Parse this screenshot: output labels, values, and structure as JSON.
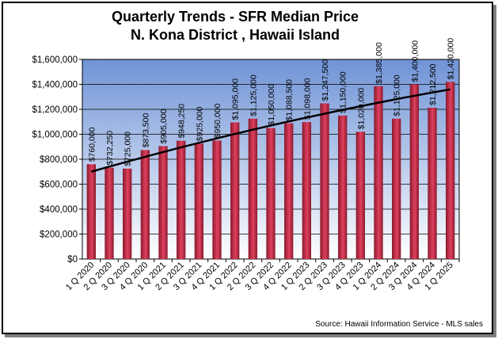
{
  "chart_data": {
    "type": "bar",
    "title": "Quarterly Trends - SFR Median Price",
    "subtitle": "N. Kona District , Hawaii Island",
    "xlabel": "",
    "ylabel": "",
    "ylim": [
      0,
      1600000
    ],
    "yticks": [
      0,
      200000,
      400000,
      600000,
      800000,
      1000000,
      1200000,
      1400000,
      1600000
    ],
    "ytick_labels": [
      "$0",
      "$200,000",
      "$400,000",
      "$600,000",
      "$800,000",
      "$1,000,000",
      "$1,200,000",
      "$1,400,000",
      "$1,600,000"
    ],
    "categories": [
      "1 Q 2020",
      "2 Q 2020",
      "3 Q 2020",
      "4 Q 2020",
      "1 Q 2021",
      "2 Q 2021",
      "3 Q 2021",
      "4 Q 2021",
      "1 Q 2022",
      "2 Q 2022",
      "3 Q 2022",
      "4 Q 2022",
      "1 Q 2023",
      "2 Q 2023",
      "3 Q 2023",
      "4 Q 2023",
      "1 Q 2024",
      "2 Q 2024",
      "3 Q 2024",
      "4 Q 2024",
      "1 Q 2025"
    ],
    "values": [
      760000,
      732250,
      725000,
      873500,
      905000,
      948250,
      925000,
      950000,
      1095000,
      1125000,
      1050000,
      1088500,
      1098000,
      1247500,
      1150000,
      1020000,
      1385000,
      1125000,
      1400000,
      1212500,
      1420000
    ],
    "data_labels": [
      "$760,000",
      "$732,250",
      "$725,000",
      "$873,500",
      "$905,000",
      "$948,250",
      "$925,000",
      "$950,000",
      "$1,095,000",
      "$1,125,000",
      "$1,050,000",
      "$1,088,500",
      "$1,098,000",
      "$1,247,500",
      "$1,150,000",
      "$1,020,000",
      "$1,385,000",
      "$1,125,000",
      "$1,400,000",
      "$1,212,500",
      "$1,420,000"
    ],
    "trendline": {
      "type": "polynomial",
      "start_value": 700000,
      "end_value": 1360000
    },
    "grid": true,
    "legend": "none",
    "colors": {
      "bar_fill": "#e0405e",
      "bar_edge": "#8a1a2e",
      "plot_top": "#6f93d6",
      "plot_bottom": "#ffffff",
      "trend_line": "#000000",
      "gridline": "#000000"
    }
  },
  "source": "Source:  Hawaii Information Service - MLS sales"
}
